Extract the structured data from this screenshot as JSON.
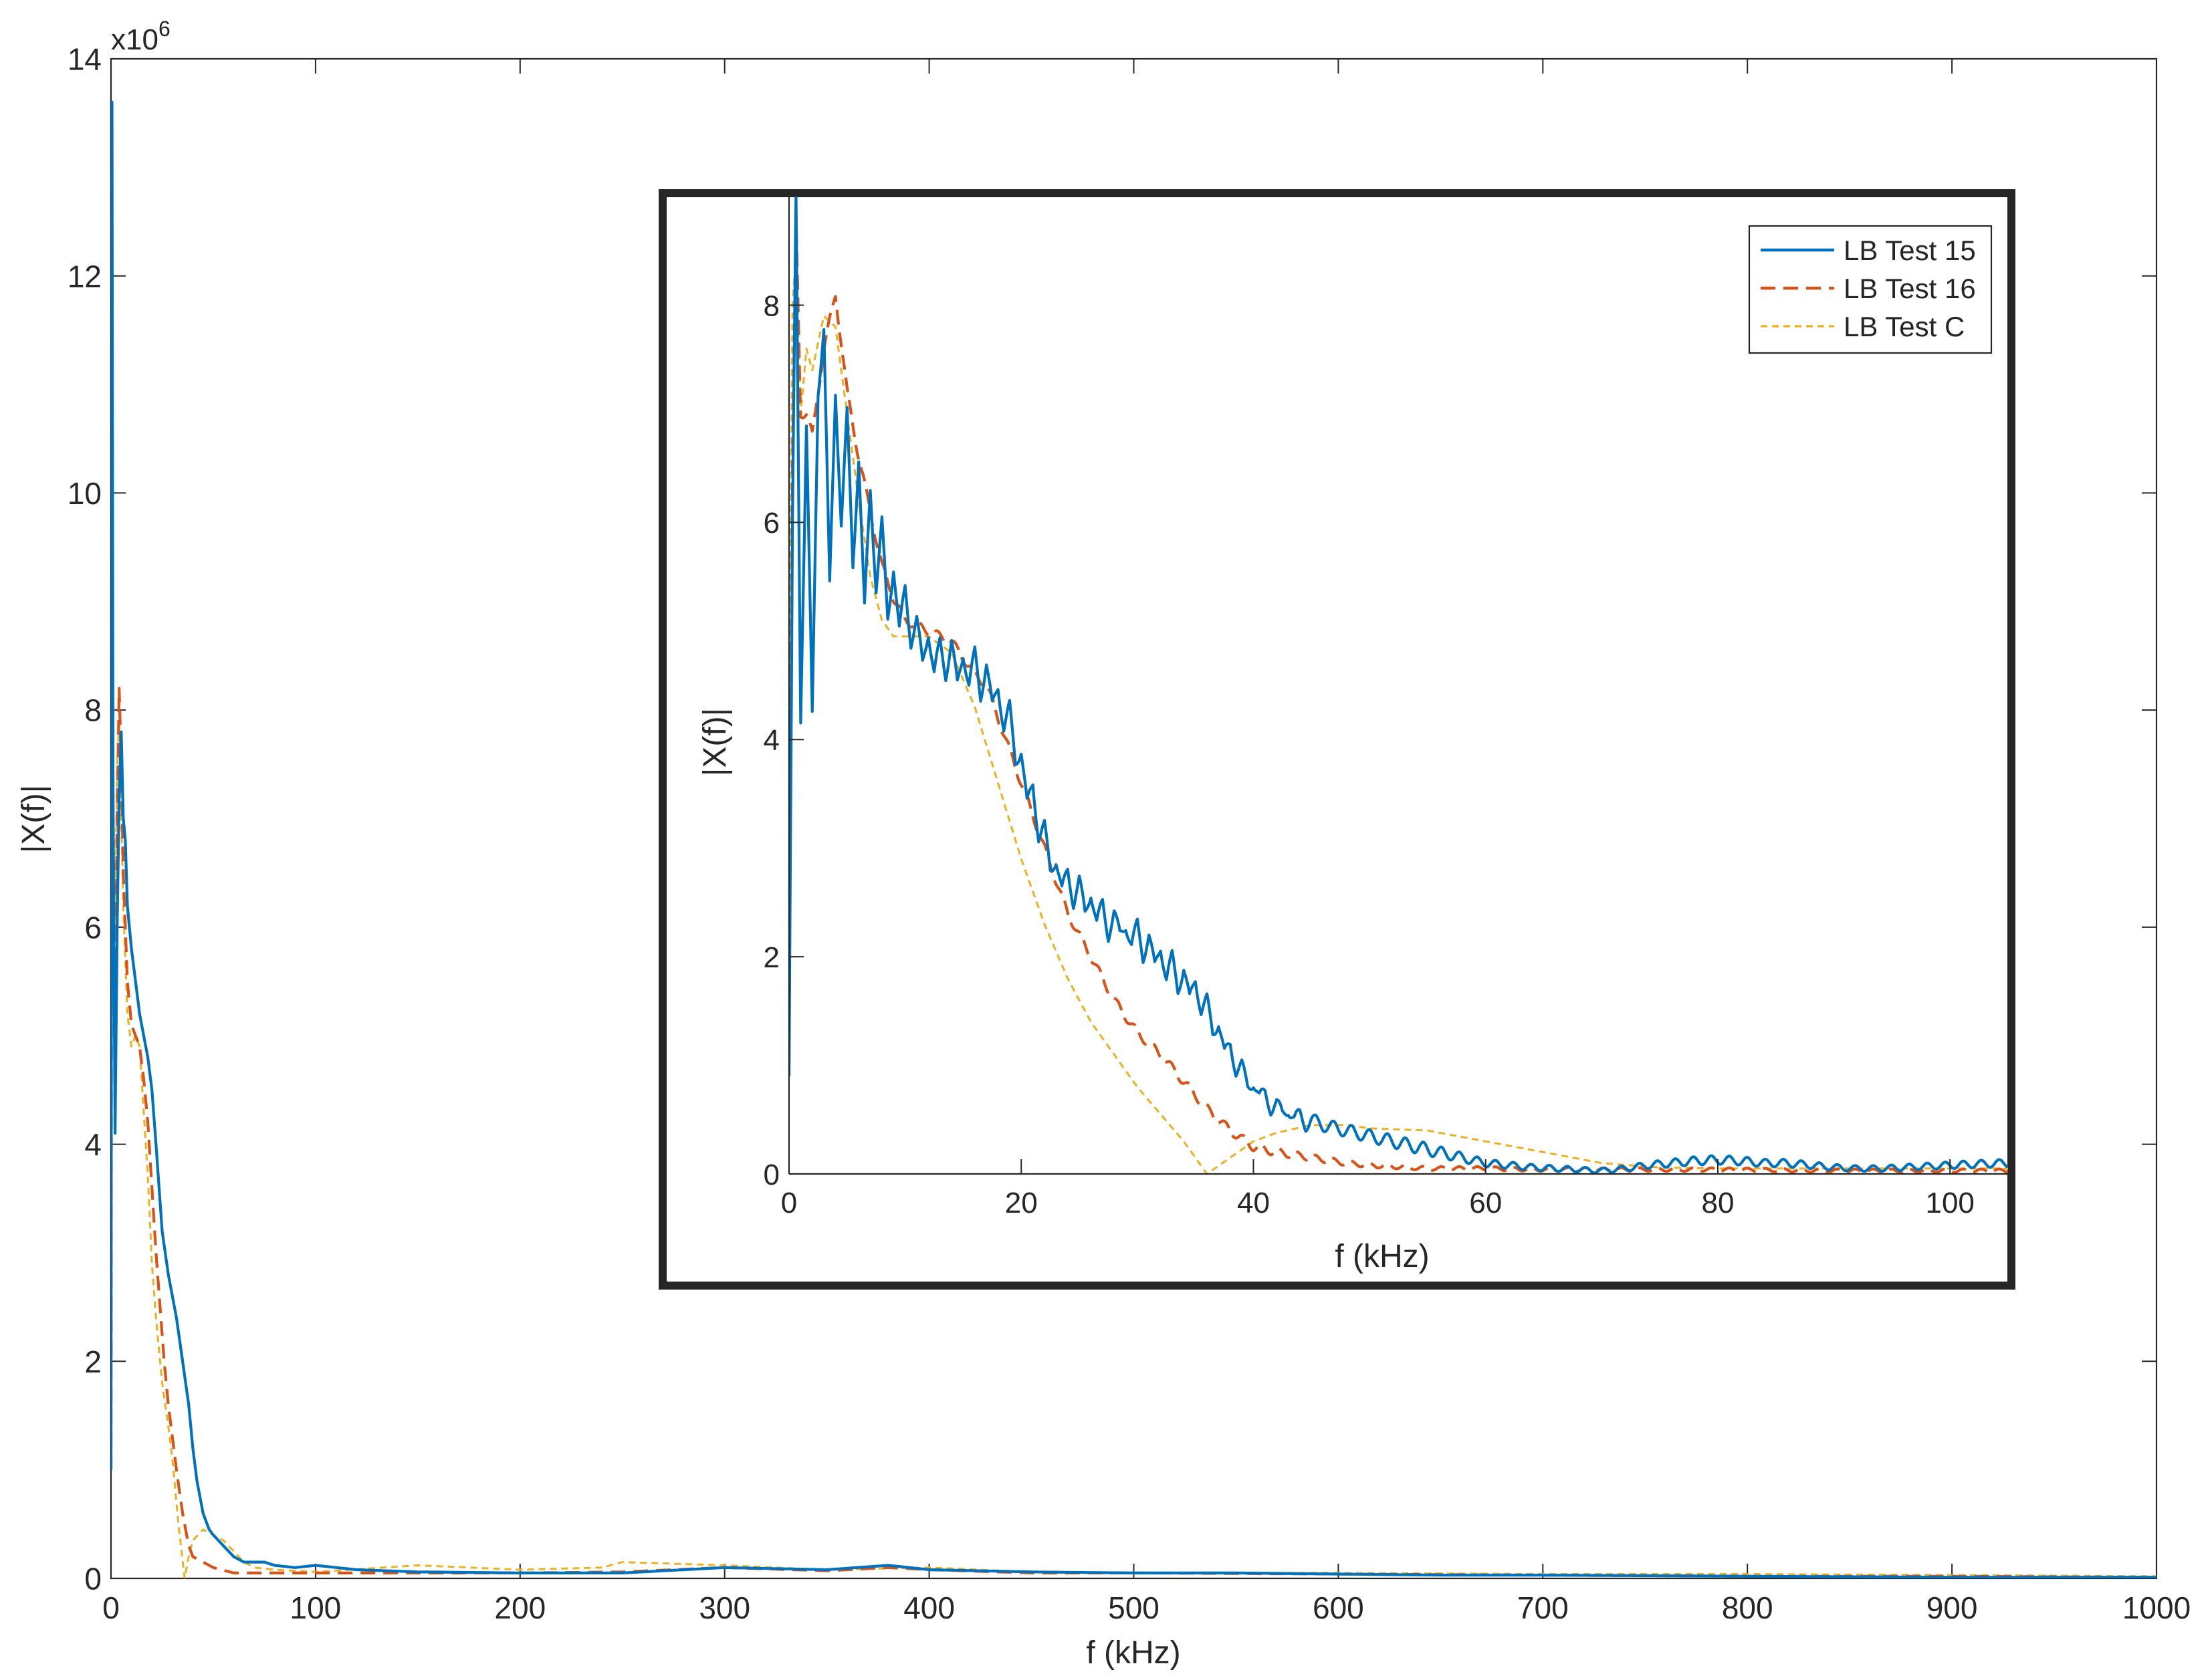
{
  "chart_data": [
    {
      "type": "line",
      "role": "main",
      "exponent_label": "x10",
      "exponent_power": "6",
      "xlabel": "f (kHz)",
      "ylabel": "|X(f)|",
      "xlim": [
        0,
        1000
      ],
      "ylim": [
        0,
        14
      ],
      "xticks": [
        "0",
        "100",
        "200",
        "300",
        "400",
        "500",
        "600",
        "700",
        "800",
        "900",
        "1000"
      ],
      "yticks": [
        "0",
        "2",
        "4",
        "6",
        "8",
        "10",
        "12",
        "14"
      ],
      "grid": false,
      "series": [
        {
          "name": "LB Test 15",
          "color": "#0072BD",
          "dash": "solid",
          "x": [
            0,
            0.5,
            1,
            2,
            3,
            4,
            5,
            6,
            7,
            8,
            9,
            10,
            12,
            14,
            16,
            18,
            20,
            22,
            25,
            28,
            30,
            32,
            35,
            38,
            40,
            42,
            45,
            48,
            50,
            55,
            60,
            65,
            70,
            75,
            80,
            90,
            100,
            120,
            150,
            200,
            250,
            300,
            350,
            380,
            400,
            450,
            500,
            550,
            600,
            650,
            700,
            800,
            900,
            1000
          ],
          "y": [
            1.0,
            13.6,
            7.0,
            4.1,
            6.0,
            7.2,
            7.8,
            7.0,
            6.8,
            6.2,
            6.0,
            5.8,
            5.5,
            5.2,
            5.0,
            4.8,
            4.5,
            4.0,
            3.2,
            2.8,
            2.6,
            2.4,
            2.0,
            1.6,
            1.2,
            0.9,
            0.6,
            0.45,
            0.4,
            0.3,
            0.2,
            0.15,
            0.15,
            0.15,
            0.12,
            0.1,
            0.12,
            0.08,
            0.06,
            0.05,
            0.05,
            0.1,
            0.08,
            0.12,
            0.08,
            0.06,
            0.05,
            0.05,
            0.04,
            0.03,
            0.03,
            0.02,
            0.01,
            0.01
          ]
        },
        {
          "name": "LB Test 16",
          "color": "#D95319",
          "dash": "dashed",
          "x": [
            0,
            0.5,
            1,
            2,
            3,
            4,
            5,
            6,
            8,
            10,
            12,
            14,
            16,
            18,
            20,
            22,
            24,
            26,
            28,
            30,
            32,
            35,
            38,
            40,
            45,
            50,
            60,
            70,
            80,
            100,
            150,
            200,
            250,
            300,
            350,
            380,
            400,
            450,
            500,
            600,
            700,
            800,
            900,
            1000
          ],
          "y": [
            1.0,
            10.2,
            7.0,
            5.0,
            7.0,
            8.2,
            7.5,
            6.5,
            5.5,
            5.1,
            5.0,
            4.9,
            4.6,
            4.2,
            3.6,
            3.0,
            2.5,
            2.0,
            1.6,
            1.3,
            1.0,
            0.6,
            0.3,
            0.2,
            0.15,
            0.1,
            0.05,
            0.05,
            0.05,
            0.05,
            0.05,
            0.05,
            0.06,
            0.1,
            0.07,
            0.1,
            0.08,
            0.05,
            0.05,
            0.04,
            0.03,
            0.02,
            0.02,
            0.01
          ]
        },
        {
          "name": "LB Test C",
          "color": "#EDB120",
          "dash": "dotted",
          "x": [
            0,
            0.5,
            1,
            2,
            3,
            4,
            5,
            6,
            8,
            10,
            12,
            14,
            16,
            18,
            20,
            22,
            25,
            28,
            30,
            33,
            36,
            38,
            40,
            45,
            50,
            55,
            60,
            65,
            70,
            80,
            100,
            150,
            200,
            240,
            250,
            300,
            350,
            400,
            450,
            500,
            600,
            700,
            800,
            900,
            1000
          ],
          "y": [
            4.2,
            8.8,
            7.5,
            6.0,
            7.5,
            7.9,
            7.0,
            6.2,
            5.2,
            4.9,
            5.0,
            4.9,
            4.3,
            3.7,
            2.9,
            2.4,
            1.8,
            1.4,
            1.1,
            0.5,
            0.0,
            0.2,
            0.35,
            0.45,
            0.4,
            0.35,
            0.25,
            0.15,
            0.1,
            0.08,
            0.06,
            0.12,
            0.08,
            0.1,
            0.15,
            0.12,
            0.08,
            0.1,
            0.06,
            0.05,
            0.05,
            0.04,
            0.04,
            0.03,
            0.02
          ]
        }
      ]
    },
    {
      "type": "line",
      "role": "inset",
      "xlabel": "f (kHz)",
      "ylabel": "|X(f)|",
      "xlim": [
        0,
        105
      ],
      "ylim": [
        0,
        9
      ],
      "xticks": [
        "0",
        "20",
        "40",
        "60",
        "80",
        "100"
      ],
      "yticks": [
        "0",
        "2",
        "4",
        "6",
        "8"
      ],
      "grid": false,
      "legend": {
        "position": "top-right",
        "entries": [
          "LB Test 15",
          "LB Test 16",
          "LB Test C"
        ]
      },
      "series": [
        {
          "name": "LB Test 15",
          "color": "#0072BD",
          "dash": "solid",
          "x": [
            0,
            0.3,
            0.6,
            1.0,
            1.5,
            2.0,
            2.5,
            3.0,
            3.5,
            4.0,
            4.5,
            5.0,
            5.5,
            6.0,
            6.5,
            7.0,
            7.5,
            8.0,
            8.5,
            9.0,
            9.5,
            10.0,
            10.5,
            11.0,
            11.5,
            12.0,
            12.5,
            13.0,
            13.5,
            14.0,
            14.5,
            15.0,
            15.5,
            16.0,
            16.5,
            17.0,
            17.5,
            18.0,
            18.5,
            19.0,
            19.5,
            20.0,
            20.5,
            21.0,
            21.5,
            22.0,
            22.5,
            23.0,
            23.5,
            24.0,
            24.5,
            25.0,
            25.5,
            26.0,
            26.5,
            27.0,
            27.5,
            28.0,
            28.5,
            29.0,
            29.5,
            30.0,
            30.5,
            31.0,
            31.5,
            32.0,
            32.5,
            33.0,
            33.5,
            34.0,
            34.5,
            35.0,
            35.5,
            36.0,
            36.5,
            37.0,
            37.5,
            38.0,
            38.5,
            39.0,
            39.5,
            40.0,
            40.5,
            41.0,
            41.5,
            42.0,
            42.5,
            43.0,
            43.5,
            44.0,
            44.5,
            45.0,
            46,
            48,
            50,
            52,
            54,
            56,
            58,
            60,
            62,
            64,
            66,
            68,
            70,
            72,
            74,
            76,
            78,
            80,
            82,
            84,
            86,
            88,
            90,
            92,
            94,
            96,
            98,
            100,
            102,
            105
          ],
          "y": [
            0.9,
            6.0,
            9.0,
            4.2,
            6.9,
            4.2,
            7.2,
            7.8,
            5.4,
            7.2,
            6.0,
            7.0,
            5.6,
            6.6,
            5.2,
            6.3,
            5.4,
            6.0,
            5.1,
            5.6,
            5.0,
            5.4,
            4.9,
            5.1,
            4.7,
            5.0,
            4.6,
            4.9,
            4.6,
            4.9,
            4.5,
            4.8,
            4.5,
            4.8,
            4.4,
            4.7,
            4.3,
            4.5,
            4.1,
            4.3,
            3.8,
            3.9,
            3.4,
            3.6,
            3.1,
            3.2,
            2.8,
            2.9,
            2.6,
            2.8,
            2.5,
            2.7,
            2.4,
            2.6,
            2.3,
            2.5,
            2.2,
            2.4,
            2.2,
            2.3,
            2.1,
            2.3,
            2.0,
            2.2,
            1.9,
            2.1,
            1.8,
            2.0,
            1.7,
            1.9,
            1.6,
            1.8,
            1.5,
            1.6,
            1.3,
            1.4,
            1.1,
            1.2,
            0.95,
            1.0,
            0.8,
            0.85,
            0.7,
            0.75,
            0.6,
            0.65,
            0.55,
            0.6,
            0.5,
            0.55,
            0.45,
            0.5,
            0.45,
            0.4,
            0.35,
            0.3,
            0.25,
            0.2,
            0.15,
            0.1,
            0.08,
            0.06,
            0.05,
            0.04,
            0.03,
            0.05,
            0.08,
            0.1,
            0.12,
            0.13,
            0.12,
            0.1,
            0.1,
            0.08,
            0.06,
            0.05,
            0.05,
            0.06,
            0.07,
            0.08,
            0.09,
            0.1
          ],
          "wiggle": 0.06
        },
        {
          "name": "LB Test 16",
          "color": "#D95319",
          "dash": "dashed",
          "x": [
            0,
            0.3,
            0.6,
            1.0,
            1.5,
            2.0,
            3.0,
            4.0,
            5.0,
            6.0,
            7.0,
            8.0,
            9.0,
            10.0,
            12.0,
            14.0,
            16.0,
            17.0,
            18.0,
            19.0,
            20.0,
            21.0,
            22.0,
            23.0,
            24.0,
            26.0,
            28.0,
            30.0,
            32.0,
            34.0,
            36.0,
            38.0,
            40.0,
            42.0,
            45.0,
            48.0,
            50.0,
            55.0,
            60.0,
            65.0,
            70.0,
            80.0,
            90.0,
            100.0,
            105.0
          ],
          "y": [
            1.0,
            6.5,
            8.8,
            7.0,
            7.0,
            6.8,
            7.6,
            8.1,
            7.2,
            6.6,
            6.1,
            5.6,
            5.3,
            5.1,
            5.0,
            4.9,
            4.6,
            4.5,
            4.2,
            3.9,
            3.6,
            3.3,
            3.0,
            2.7,
            2.4,
            2.0,
            1.6,
            1.3,
            1.1,
            0.85,
            0.6,
            0.4,
            0.25,
            0.2,
            0.15,
            0.1,
            0.08,
            0.05,
            0.05,
            0.04,
            0.04,
            0.04,
            0.03,
            0.03,
            0.03
          ],
          "wiggle": 0.04
        },
        {
          "name": "LB Test C",
          "color": "#EDB120",
          "dash": "dotted",
          "x": [
            0,
            0.3,
            0.6,
            1.0,
            1.5,
            2.0,
            3.0,
            4.0,
            5.0,
            6.0,
            7.0,
            8.0,
            9.0,
            10.0,
            12.0,
            14.0,
            16.0,
            18.0,
            20.0,
            22.0,
            24.0,
            26.0,
            28.0,
            30.0,
            32.0,
            34.0,
            36.0,
            38.0,
            40.0,
            42.0,
            45.0,
            48.0,
            50.0,
            55.0,
            60.0,
            65.0,
            70.0,
            75.0,
            80.0,
            90.0,
            100.0,
            105.0
          ],
          "y": [
            4.0,
            8.0,
            8.5,
            7.0,
            7.6,
            7.4,
            7.9,
            7.8,
            7.0,
            6.2,
            5.5,
            5.1,
            4.95,
            4.95,
            4.95,
            4.8,
            4.3,
            3.6,
            2.9,
            2.3,
            1.8,
            1.4,
            1.1,
            0.8,
            0.55,
            0.3,
            0.0,
            0.15,
            0.3,
            0.38,
            0.45,
            0.45,
            0.42,
            0.4,
            0.3,
            0.2,
            0.1,
            0.06,
            0.05,
            0.05,
            0.05,
            0.05
          ],
          "wiggle": 0.0
        }
      ]
    }
  ]
}
